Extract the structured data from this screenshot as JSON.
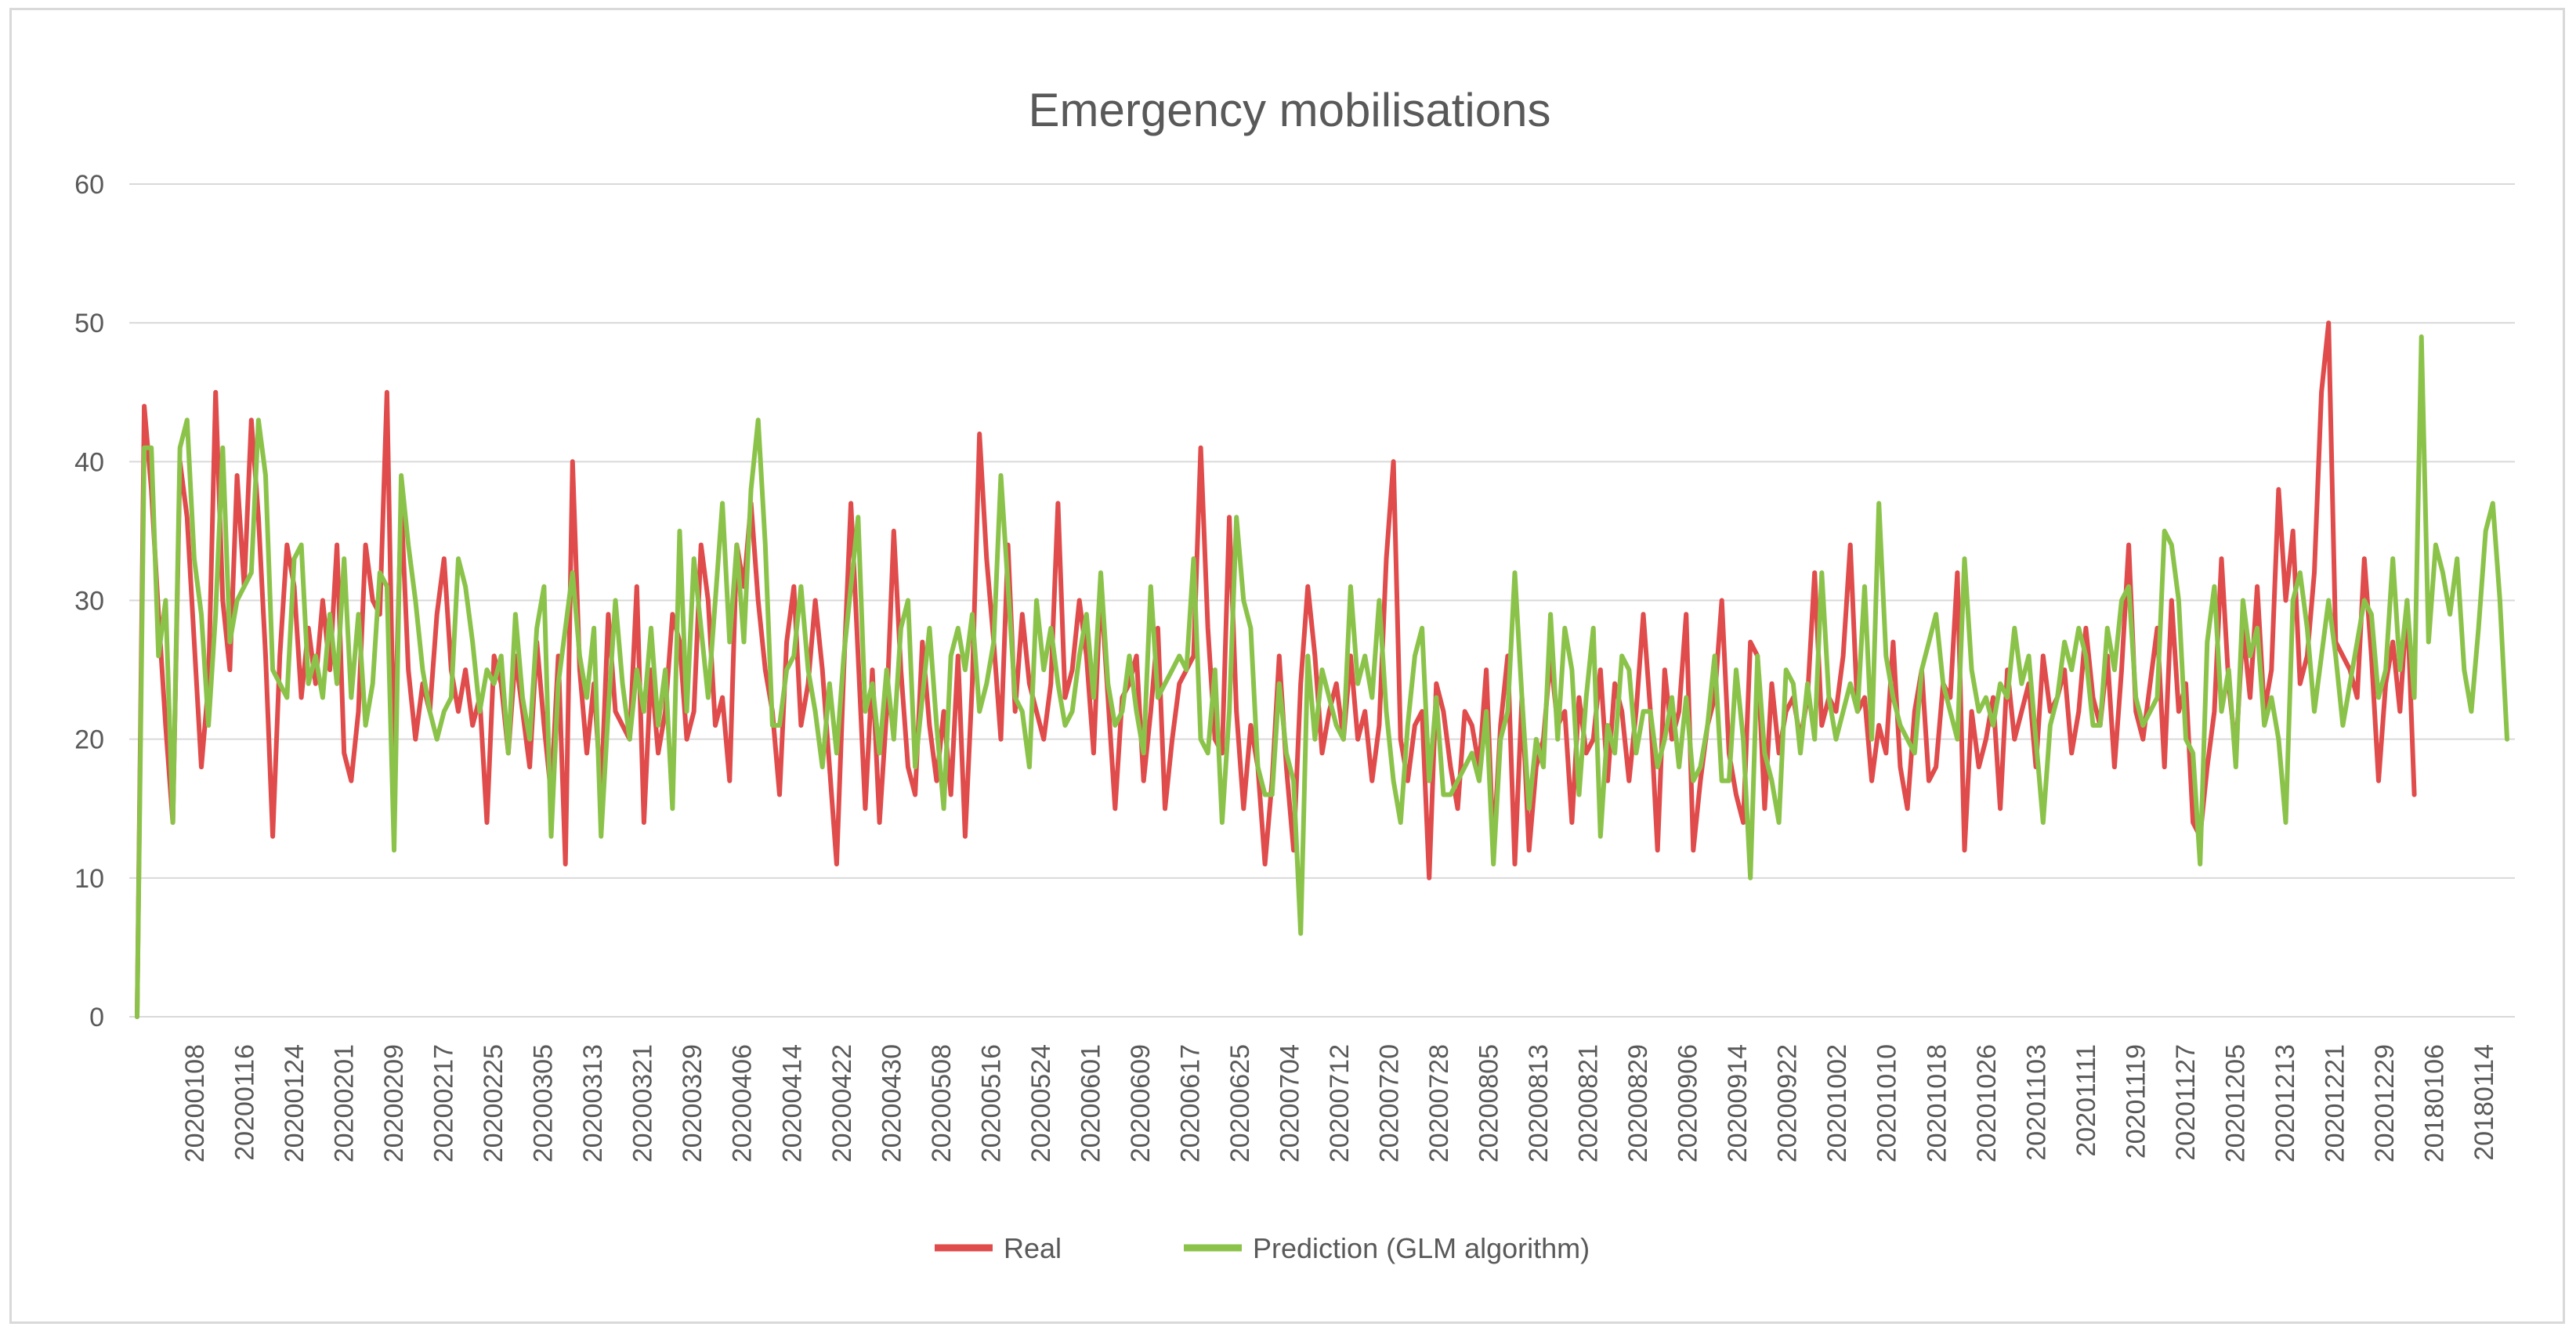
{
  "chart_data": {
    "type": "line",
    "title": "Emergency mobilisations",
    "xlabel": "",
    "ylabel": "",
    "ylim": [
      0,
      60
    ],
    "yticks": [
      0,
      10,
      20,
      30,
      40,
      50,
      60
    ],
    "grid": true,
    "legend_position": "bottom",
    "xtick_labels": [
      "20200108",
      "20200116",
      "20200124",
      "20200201",
      "20200209",
      "20200217",
      "20200225",
      "20200305",
      "20200313",
      "20200321",
      "20200329",
      "20200406",
      "20200414",
      "20200422",
      "20200430",
      "20200508",
      "20200516",
      "20200524",
      "20200601",
      "20200609",
      "20200617",
      "20200625",
      "20200704",
      "20200712",
      "20200720",
      "20200728",
      "20200805",
      "20200813",
      "20200821",
      "20200829",
      "20200906",
      "20200914",
      "20200922",
      "20201002",
      "20201010",
      "20201018",
      "20201026",
      "20201103",
      "20201111",
      "20201119",
      "20201127",
      "20201205",
      "20201213",
      "20201221",
      "20201229",
      "20180106",
      "20180114"
    ],
    "series": [
      {
        "name": "Real",
        "color": "#e04b4b",
        "values": [
          0,
          44,
          38,
          29,
          21,
          14,
          40,
          36,
          27,
          18,
          24,
          45,
          30,
          25,
          39,
          31,
          43,
          36,
          26,
          13,
          26,
          34,
          31,
          23,
          28,
          24,
          30,
          25,
          34,
          19,
          17,
          22,
          34,
          30,
          29,
          45,
          18,
          37,
          25,
          20,
          24,
          22,
          29,
          33,
          25,
          22,
          25,
          21,
          23,
          14,
          26,
          24,
          19,
          26,
          22,
          18,
          27,
          21,
          16,
          26,
          11,
          40,
          25,
          19,
          24,
          16,
          29,
          22,
          21,
          20,
          31,
          14,
          25,
          19,
          22,
          29,
          27,
          20,
          22,
          34,
          30,
          21,
          23,
          17,
          34,
          31,
          37,
          30,
          25,
          22,
          16,
          27,
          31,
          21,
          24,
          30,
          25,
          18,
          11,
          25,
          37,
          26,
          15,
          25,
          14,
          22,
          35,
          25,
          18,
          16,
          27,
          21,
          17,
          22,
          16,
          26,
          13,
          24,
          42,
          33,
          27,
          20,
          34,
          22,
          29,
          24,
          22,
          20,
          24,
          37,
          23,
          25,
          30,
          26,
          19,
          31,
          23,
          15,
          23,
          24,
          26,
          17,
          22,
          28,
          15,
          20,
          24,
          25,
          26,
          41,
          28,
          20,
          19,
          36,
          22,
          15,
          21,
          18,
          11,
          17,
          26,
          18,
          12,
          24,
          31,
          26,
          19,
          22,
          24,
          20,
          26,
          20,
          22,
          17,
          21,
          33,
          40,
          20,
          17,
          21,
          22,
          10,
          24,
          22,
          18,
          15,
          22,
          21,
          18,
          25,
          12,
          21,
          26,
          11,
          23,
          12,
          18,
          20,
          26,
          21,
          22,
          14,
          23,
          19,
          20,
          25,
          17,
          24,
          22,
          17,
          22,
          29,
          22,
          12,
          25,
          20,
          22,
          29,
          12,
          17,
          21,
          23,
          30,
          19,
          16,
          14,
          27,
          26,
          15,
          24,
          19,
          22,
          23,
          20,
          23,
          32,
          21,
          23,
          22,
          26,
          34,
          22,
          23,
          17,
          21,
          19,
          27,
          18,
          15,
          22,
          25,
          17,
          18,
          24,
          23,
          32,
          12,
          22,
          18,
          20,
          23,
          15,
          25,
          20,
          22,
          24,
          18,
          26,
          22,
          23,
          25,
          19,
          22,
          28,
          23,
          21,
          26,
          18,
          25,
          34,
          22,
          20,
          24,
          28,
          18,
          30,
          22,
          24,
          14,
          13,
          18,
          22,
          33,
          24,
          19,
          28,
          23,
          31,
          22,
          25,
          38,
          30,
          35,
          24,
          26,
          32,
          45,
          50,
          27,
          26,
          25,
          23,
          33,
          26,
          17,
          24,
          27,
          22,
          30,
          16
        ]
      },
      {
        "name": "Prediction (GLM algorithm)",
        "color": "#8bc34a",
        "values": [
          0,
          41,
          41,
          26,
          30,
          14,
          41,
          43,
          33,
          29,
          21,
          29,
          41,
          27,
          30,
          31,
          32,
          43,
          39,
          25,
          24,
          23,
          33,
          34,
          24,
          26,
          23,
          29,
          24,
          33,
          23,
          29,
          21,
          24,
          32,
          31,
          12,
          39,
          34,
          30,
          25,
          22,
          20,
          22,
          23,
          33,
          31,
          27,
          22,
          25,
          24,
          26,
          19,
          29,
          23,
          20,
          28,
          31,
          13,
          24,
          28,
          32,
          26,
          23,
          28,
          13,
          22,
          30,
          24,
          20,
          25,
          22,
          28,
          21,
          25,
          15,
          35,
          22,
          33,
          28,
          23,
          30,
          37,
          27,
          34,
          27,
          38,
          43,
          34,
          21,
          21,
          25,
          26,
          31,
          25,
          22,
          18,
          24,
          19,
          26,
          31,
          36,
          22,
          24,
          19,
          25,
          20,
          28,
          30,
          18,
          23,
          28,
          21,
          15,
          26,
          28,
          25,
          29,
          22,
          24,
          27,
          39,
          31,
          23,
          22,
          18,
          30,
          25,
          28,
          24,
          21,
          22,
          26,
          29,
          23,
          32,
          24,
          21,
          22,
          26,
          22,
          19,
          31,
          23,
          24,
          25,
          26,
          25,
          33,
          20,
          19,
          25,
          14,
          22,
          36,
          30,
          28,
          18,
          16,
          16,
          24,
          19,
          17,
          6,
          26,
          20,
          25,
          23,
          21,
          20,
          31,
          24,
          26,
          23,
          30,
          22,
          17,
          14,
          21,
          26,
          28,
          17,
          23,
          16,
          16,
          17,
          18,
          19,
          17,
          22,
          11,
          20,
          22,
          32,
          23,
          15,
          20,
          18,
          29,
          20,
          28,
          25,
          16,
          23,
          28,
          13,
          21,
          19,
          26,
          25,
          19,
          22,
          22,
          18,
          20,
          23,
          18,
          23,
          17,
          18,
          21,
          26,
          17,
          17,
          25,
          20,
          10,
          26,
          19,
          17,
          14,
          25,
          24,
          19,
          24,
          20,
          32,
          23,
          20,
          22,
          24,
          22,
          31,
          20,
          37,
          26,
          23,
          21,
          20,
          19,
          25,
          27,
          29,
          24,
          22,
          20,
          33,
          25,
          22,
          23,
          21,
          24,
          23,
          28,
          24,
          26,
          20,
          14,
          21,
          23,
          27,
          25,
          28,
          26,
          21,
          21,
          28,
          25,
          30,
          31,
          23,
          21,
          22,
          23,
          35,
          34,
          30,
          20,
          19,
          11,
          27,
          31,
          22,
          25,
          18,
          30,
          26,
          28,
          21,
          23,
          20,
          14,
          30,
          32,
          28,
          22,
          26,
          30,
          26,
          21,
          24,
          27,
          30,
          29,
          23,
          25,
          33,
          25,
          30,
          23,
          49,
          27,
          34,
          32,
          29,
          33,
          25,
          22,
          28,
          35,
          37,
          30,
          20
        ]
      }
    ]
  }
}
